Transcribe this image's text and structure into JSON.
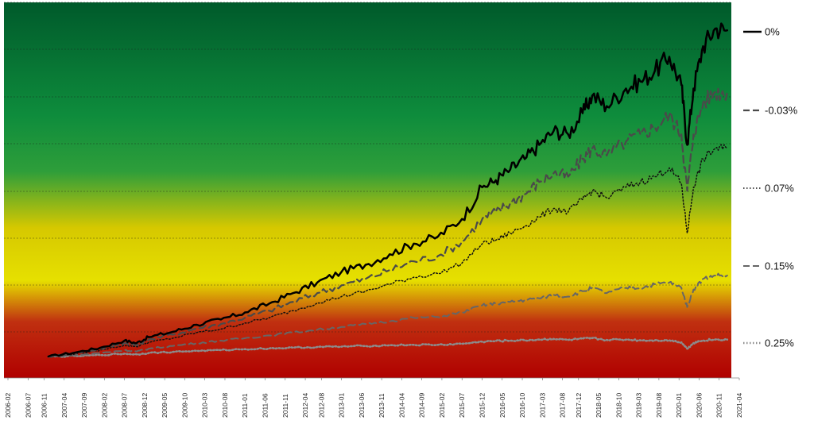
{
  "chart_data": {
    "type": "line",
    "title": "",
    "xlabel": "",
    "ylabel": "",
    "background": {
      "style": "vertical gradient",
      "colors": [
        "#005a2b",
        "#0e8c3c",
        "#2e9e3a",
        "#d6c800",
        "#e6e000",
        "#c03010",
        "#b00000"
      ]
    },
    "grid": "horizontal dashed",
    "legend_position": "right",
    "x_ticks": [
      "2006-02",
      "2006-07",
      "2006-11",
      "2007-04",
      "2007-09",
      "2008-02",
      "2008-07",
      "2008-12",
      "2009-05",
      "2009-10",
      "2010-03",
      "2010-08",
      "2011-01",
      "2011-06",
      "2011-11",
      "2012-04",
      "2012-08",
      "2013-01",
      "2013-06",
      "2013-11",
      "2014-04",
      "2014-09",
      "2015-02",
      "2015-07",
      "2015-12",
      "2016-05",
      "2016-10",
      "2017-03",
      "2017-08",
      "2017-12",
      "2018-05",
      "2018-10",
      "2019-03",
      "2019-08",
      "2020-01",
      "2020-06",
      "2020-11",
      "2021-04"
    ],
    "x": [
      2006.92,
      2007.5,
      2008.0,
      2008.5,
      2008.75,
      2009.0,
      2009.5,
      2010.0,
      2010.5,
      2011.0,
      2011.5,
      2012.0,
      2012.5,
      2013.0,
      2013.5,
      2014.0,
      2014.5,
      2015.0,
      2015.5,
      2015.92,
      2016.2,
      2016.5,
      2016.8,
      2017.1,
      2017.4,
      2017.7,
      2018.0,
      2018.2,
      2018.5,
      2018.9,
      2019.2,
      2019.5,
      2019.8,
      2020.05,
      2020.17,
      2020.3,
      2020.5,
      2020.75,
      2021.0
    ],
    "series": [
      {
        "name": "0%",
        "color": "#000000",
        "dash": "solid",
        "width": 2.5,
        "values": [
          1.0,
          1.12,
          1.25,
          1.45,
          1.38,
          1.55,
          1.7,
          1.9,
          2.05,
          2.25,
          2.5,
          2.8,
          3.1,
          3.4,
          3.6,
          3.9,
          4.2,
          4.4,
          4.9,
          5.8,
          6.0,
          6.3,
          6.6,
          7.0,
          7.4,
          7.3,
          7.9,
          8.4,
          8.1,
          8.6,
          8.8,
          9.1,
          9.5,
          8.7,
          7.0,
          8.6,
          9.8,
          10.3,
          10.25
        ]
      },
      {
        "name": "-0.03%",
        "color": "#4a4a4a",
        "dash": "long-dash",
        "width": 2.2,
        "values": [
          1.0,
          1.1,
          1.22,
          1.38,
          1.32,
          1.48,
          1.62,
          1.8,
          1.92,
          2.1,
          2.3,
          2.55,
          2.8,
          3.02,
          3.2,
          3.45,
          3.7,
          3.85,
          4.25,
          4.9,
          5.1,
          5.35,
          5.6,
          5.95,
          6.2,
          6.1,
          6.6,
          6.9,
          6.7,
          7.1,
          7.3,
          7.5,
          7.85,
          7.3,
          5.7,
          7.3,
          8.2,
          8.5,
          8.5
        ]
      },
      {
        "name": "0.07%",
        "color": "#111111",
        "dash": "dotted",
        "width": 1.5,
        "values": [
          1.0,
          1.08,
          1.18,
          1.32,
          1.28,
          1.4,
          1.52,
          1.68,
          1.78,
          1.95,
          2.1,
          2.3,
          2.52,
          2.7,
          2.85,
          3.05,
          3.25,
          3.35,
          3.65,
          4.2,
          4.3,
          4.5,
          4.7,
          4.95,
          5.2,
          5.1,
          5.45,
          5.7,
          5.5,
          5.8,
          5.95,
          6.1,
          6.35,
          5.9,
          4.5,
          5.8,
          6.6,
          6.9,
          6.9
        ]
      },
      {
        "name": "0.15%",
        "color": "#666666",
        "dash": "long-dash",
        "width": 2.0,
        "values": [
          1.0,
          1.04,
          1.1,
          1.18,
          1.14,
          1.22,
          1.3,
          1.38,
          1.45,
          1.52,
          1.6,
          1.68,
          1.76,
          1.84,
          1.92,
          2.0,
          2.1,
          2.12,
          2.25,
          2.45,
          2.5,
          2.55,
          2.6,
          2.65,
          2.75,
          2.7,
          2.85,
          2.95,
          2.8,
          2.95,
          2.95,
          3.05,
          3.1,
          2.95,
          2.4,
          2.9,
          3.2,
          3.3,
          3.3
        ]
      },
      {
        "name": "0.25%",
        "color": "#8c8c8c",
        "dash": "dotted",
        "width": 2.6,
        "values": [
          1.0,
          1.01,
          1.04,
          1.08,
          1.06,
          1.1,
          1.13,
          1.16,
          1.18,
          1.21,
          1.23,
          1.25,
          1.27,
          1.28,
          1.3,
          1.32,
          1.33,
          1.33,
          1.36,
          1.42,
          1.44,
          1.45,
          1.46,
          1.48,
          1.5,
          1.47,
          1.5,
          1.52,
          1.47,
          1.48,
          1.46,
          1.46,
          1.46,
          1.4,
          1.22,
          1.38,
          1.46,
          1.48,
          1.48
        ]
      }
    ]
  }
}
